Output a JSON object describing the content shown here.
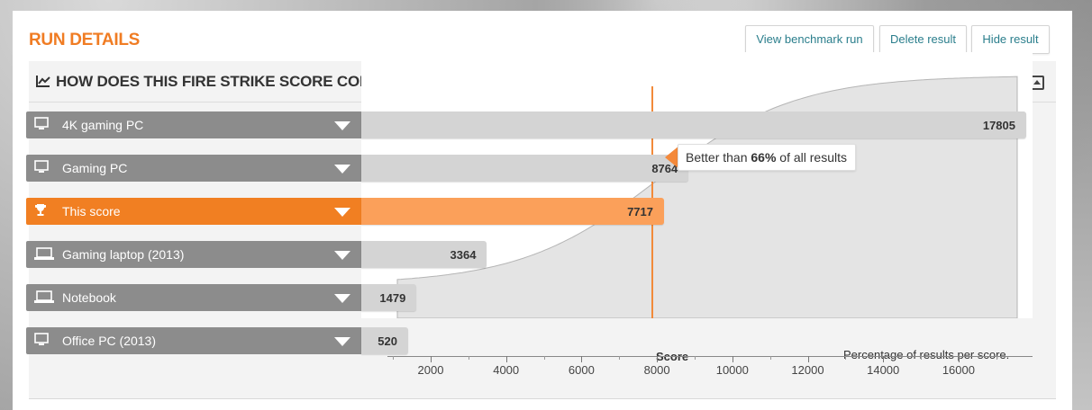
{
  "header": {
    "title": "RUN DETAILS",
    "buttons": {
      "view": "View benchmark run",
      "delete": "Delete result",
      "hide": "Hide result"
    }
  },
  "section": {
    "title": "HOW DOES THIS FIRE STRIKE SCORE COMPARE?"
  },
  "rows": [
    {
      "label": "4K gaming PC",
      "score": 17805,
      "score_text": "17805",
      "icon": "desktop-icon",
      "highlight": false
    },
    {
      "label": "Gaming PC",
      "score": 8764,
      "score_text": "8764",
      "icon": "desktop-icon",
      "highlight": false
    },
    {
      "label": "This score",
      "score": 7717,
      "score_text": "7717",
      "icon": "trophy-icon",
      "highlight": true
    },
    {
      "label": "Gaming laptop (2013)",
      "score": 3364,
      "score_text": "3364",
      "icon": "laptop-icon",
      "highlight": false
    },
    {
      "label": "Notebook",
      "score": 1479,
      "score_text": "1479",
      "icon": "laptop-icon",
      "highlight": false
    },
    {
      "label": "Office PC (2013)",
      "score": 520,
      "score_text": "520",
      "icon": "desktop-icon",
      "highlight": false
    }
  ],
  "callout": {
    "prefix": "Better than ",
    "percent": "66%",
    "suffix": " of all results"
  },
  "axis": {
    "score_label": "Score",
    "distribution_label": "Percentage of results per score.",
    "ticks": [
      "2000",
      "4000",
      "6000",
      "8000",
      "10000",
      "12000",
      "14000",
      "16000"
    ]
  },
  "colors": {
    "accent": "#f07c23",
    "this_bar": "#fba05a",
    "bar": "#d4d4d4",
    "label_bg": "#8c8c8c",
    "link": "#2a7e8c"
  }
}
